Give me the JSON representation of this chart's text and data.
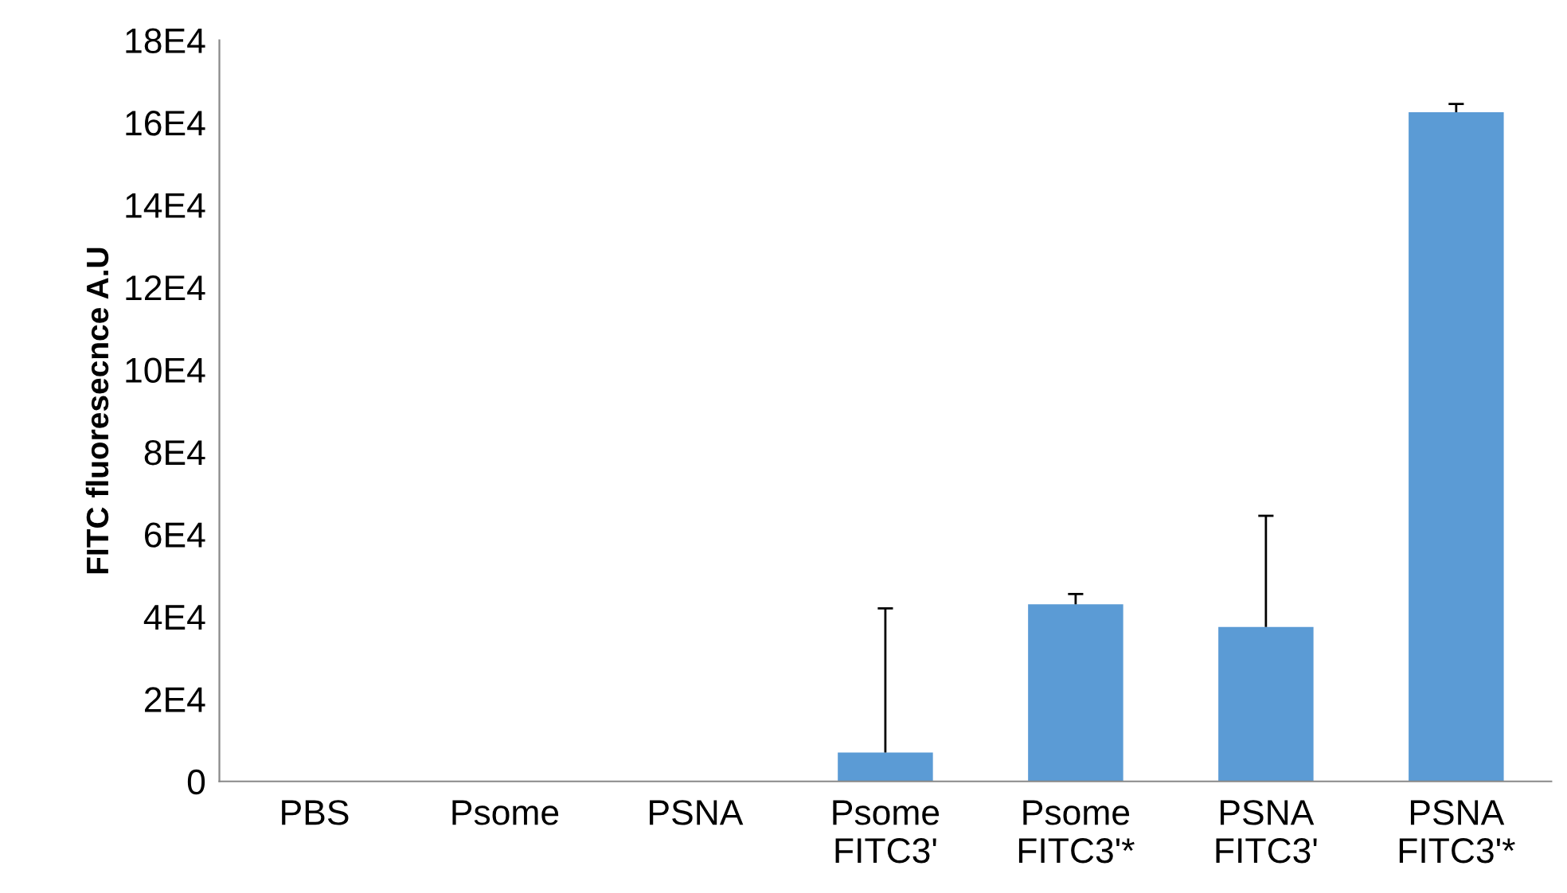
{
  "chart_data": {
    "type": "bar",
    "ylabel": "FITC fluoresecnce A.U",
    "categories": [
      "PBS",
      "Psome",
      "PSNA",
      "Psome\nFITC3'",
      "Psome\nFITC3'*",
      "PSNA\nFITC3'",
      "PSNA\nFITC3'*"
    ],
    "values": [
      0,
      0,
      0,
      7000,
      43000,
      37500,
      162500
    ],
    "errors": [
      null,
      null,
      null,
      [
        7000,
        42000
      ],
      [
        43000,
        45500
      ],
      [
        37500,
        64500
      ],
      [
        162500,
        164500
      ]
    ],
    "color": "#5b9bd5",
    "ylim": [
      0,
      180000
    ],
    "yticks": [
      0,
      {
        "value": 20000,
        "label": "2E4"
      },
      {
        "value": 40000,
        "label": "4E4"
      },
      {
        "value": 60000,
        "label": "6E4"
      },
      {
        "value": 80000,
        "label": "8E4"
      },
      {
        "value": 100000,
        "label": "10E4"
      },
      {
        "value": 120000,
        "label": "12E4"
      },
      {
        "value": 140000,
        "label": "14E4"
      },
      {
        "value": 160000,
        "label": "16E4"
      },
      {
        "value": 180000,
        "label": "18E4"
      }
    ],
    "grid": false
  }
}
